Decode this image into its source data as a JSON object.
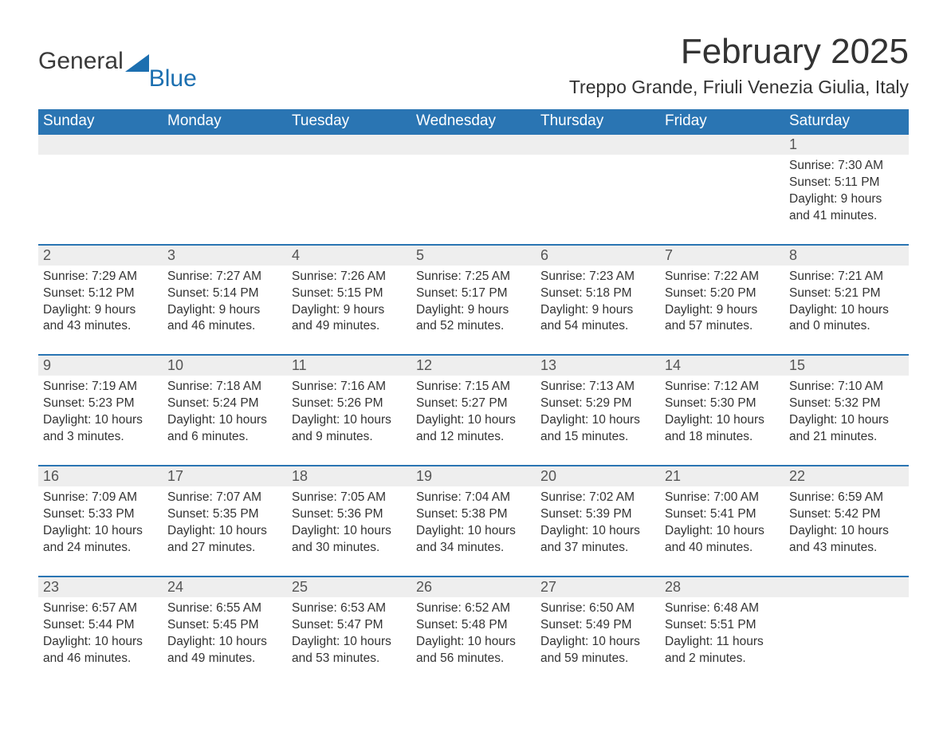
{
  "logo": {
    "general": "General",
    "blue": "Blue"
  },
  "title": "February 2025",
  "location": "Treppo Grande, Friuli Venezia Giulia, Italy",
  "colors": {
    "header_bg": "#2a75b3",
    "header_text": "#ffffff",
    "daynum_bg": "#eeeeee",
    "text": "#333333",
    "logo_blue": "#1c6fb0",
    "week_border": "#2a75b3",
    "background": "#ffffff"
  },
  "day_names": [
    "Sunday",
    "Monday",
    "Tuesday",
    "Wednesday",
    "Thursday",
    "Friday",
    "Saturday"
  ],
  "weeks": [
    [
      null,
      null,
      null,
      null,
      null,
      null,
      {
        "n": "1",
        "sunrise": "Sunrise: 7:30 AM",
        "sunset": "Sunset: 5:11 PM",
        "d1": "Daylight: 9 hours",
        "d2": "and 41 minutes."
      }
    ],
    [
      {
        "n": "2",
        "sunrise": "Sunrise: 7:29 AM",
        "sunset": "Sunset: 5:12 PM",
        "d1": "Daylight: 9 hours",
        "d2": "and 43 minutes."
      },
      {
        "n": "3",
        "sunrise": "Sunrise: 7:27 AM",
        "sunset": "Sunset: 5:14 PM",
        "d1": "Daylight: 9 hours",
        "d2": "and 46 minutes."
      },
      {
        "n": "4",
        "sunrise": "Sunrise: 7:26 AM",
        "sunset": "Sunset: 5:15 PM",
        "d1": "Daylight: 9 hours",
        "d2": "and 49 minutes."
      },
      {
        "n": "5",
        "sunrise": "Sunrise: 7:25 AM",
        "sunset": "Sunset: 5:17 PM",
        "d1": "Daylight: 9 hours",
        "d2": "and 52 minutes."
      },
      {
        "n": "6",
        "sunrise": "Sunrise: 7:23 AM",
        "sunset": "Sunset: 5:18 PM",
        "d1": "Daylight: 9 hours",
        "d2": "and 54 minutes."
      },
      {
        "n": "7",
        "sunrise": "Sunrise: 7:22 AM",
        "sunset": "Sunset: 5:20 PM",
        "d1": "Daylight: 9 hours",
        "d2": "and 57 minutes."
      },
      {
        "n": "8",
        "sunrise": "Sunrise: 7:21 AM",
        "sunset": "Sunset: 5:21 PM",
        "d1": "Daylight: 10 hours",
        "d2": "and 0 minutes."
      }
    ],
    [
      {
        "n": "9",
        "sunrise": "Sunrise: 7:19 AM",
        "sunset": "Sunset: 5:23 PM",
        "d1": "Daylight: 10 hours",
        "d2": "and 3 minutes."
      },
      {
        "n": "10",
        "sunrise": "Sunrise: 7:18 AM",
        "sunset": "Sunset: 5:24 PM",
        "d1": "Daylight: 10 hours",
        "d2": "and 6 minutes."
      },
      {
        "n": "11",
        "sunrise": "Sunrise: 7:16 AM",
        "sunset": "Sunset: 5:26 PM",
        "d1": "Daylight: 10 hours",
        "d2": "and 9 minutes."
      },
      {
        "n": "12",
        "sunrise": "Sunrise: 7:15 AM",
        "sunset": "Sunset: 5:27 PM",
        "d1": "Daylight: 10 hours",
        "d2": "and 12 minutes."
      },
      {
        "n": "13",
        "sunrise": "Sunrise: 7:13 AM",
        "sunset": "Sunset: 5:29 PM",
        "d1": "Daylight: 10 hours",
        "d2": "and 15 minutes."
      },
      {
        "n": "14",
        "sunrise": "Sunrise: 7:12 AM",
        "sunset": "Sunset: 5:30 PM",
        "d1": "Daylight: 10 hours",
        "d2": "and 18 minutes."
      },
      {
        "n": "15",
        "sunrise": "Sunrise: 7:10 AM",
        "sunset": "Sunset: 5:32 PM",
        "d1": "Daylight: 10 hours",
        "d2": "and 21 minutes."
      }
    ],
    [
      {
        "n": "16",
        "sunrise": "Sunrise: 7:09 AM",
        "sunset": "Sunset: 5:33 PM",
        "d1": "Daylight: 10 hours",
        "d2": "and 24 minutes."
      },
      {
        "n": "17",
        "sunrise": "Sunrise: 7:07 AM",
        "sunset": "Sunset: 5:35 PM",
        "d1": "Daylight: 10 hours",
        "d2": "and 27 minutes."
      },
      {
        "n": "18",
        "sunrise": "Sunrise: 7:05 AM",
        "sunset": "Sunset: 5:36 PM",
        "d1": "Daylight: 10 hours",
        "d2": "and 30 minutes."
      },
      {
        "n": "19",
        "sunrise": "Sunrise: 7:04 AM",
        "sunset": "Sunset: 5:38 PM",
        "d1": "Daylight: 10 hours",
        "d2": "and 34 minutes."
      },
      {
        "n": "20",
        "sunrise": "Sunrise: 7:02 AM",
        "sunset": "Sunset: 5:39 PM",
        "d1": "Daylight: 10 hours",
        "d2": "and 37 minutes."
      },
      {
        "n": "21",
        "sunrise": "Sunrise: 7:00 AM",
        "sunset": "Sunset: 5:41 PM",
        "d1": "Daylight: 10 hours",
        "d2": "and 40 minutes."
      },
      {
        "n": "22",
        "sunrise": "Sunrise: 6:59 AM",
        "sunset": "Sunset: 5:42 PM",
        "d1": "Daylight: 10 hours",
        "d2": "and 43 minutes."
      }
    ],
    [
      {
        "n": "23",
        "sunrise": "Sunrise: 6:57 AM",
        "sunset": "Sunset: 5:44 PM",
        "d1": "Daylight: 10 hours",
        "d2": "and 46 minutes."
      },
      {
        "n": "24",
        "sunrise": "Sunrise: 6:55 AM",
        "sunset": "Sunset: 5:45 PM",
        "d1": "Daylight: 10 hours",
        "d2": "and 49 minutes."
      },
      {
        "n": "25",
        "sunrise": "Sunrise: 6:53 AM",
        "sunset": "Sunset: 5:47 PM",
        "d1": "Daylight: 10 hours",
        "d2": "and 53 minutes."
      },
      {
        "n": "26",
        "sunrise": "Sunrise: 6:52 AM",
        "sunset": "Sunset: 5:48 PM",
        "d1": "Daylight: 10 hours",
        "d2": "and 56 minutes."
      },
      {
        "n": "27",
        "sunrise": "Sunrise: 6:50 AM",
        "sunset": "Sunset: 5:49 PM",
        "d1": "Daylight: 10 hours",
        "d2": "and 59 minutes."
      },
      {
        "n": "28",
        "sunrise": "Sunrise: 6:48 AM",
        "sunset": "Sunset: 5:51 PM",
        "d1": "Daylight: 11 hours",
        "d2": "and 2 minutes."
      },
      null
    ]
  ]
}
